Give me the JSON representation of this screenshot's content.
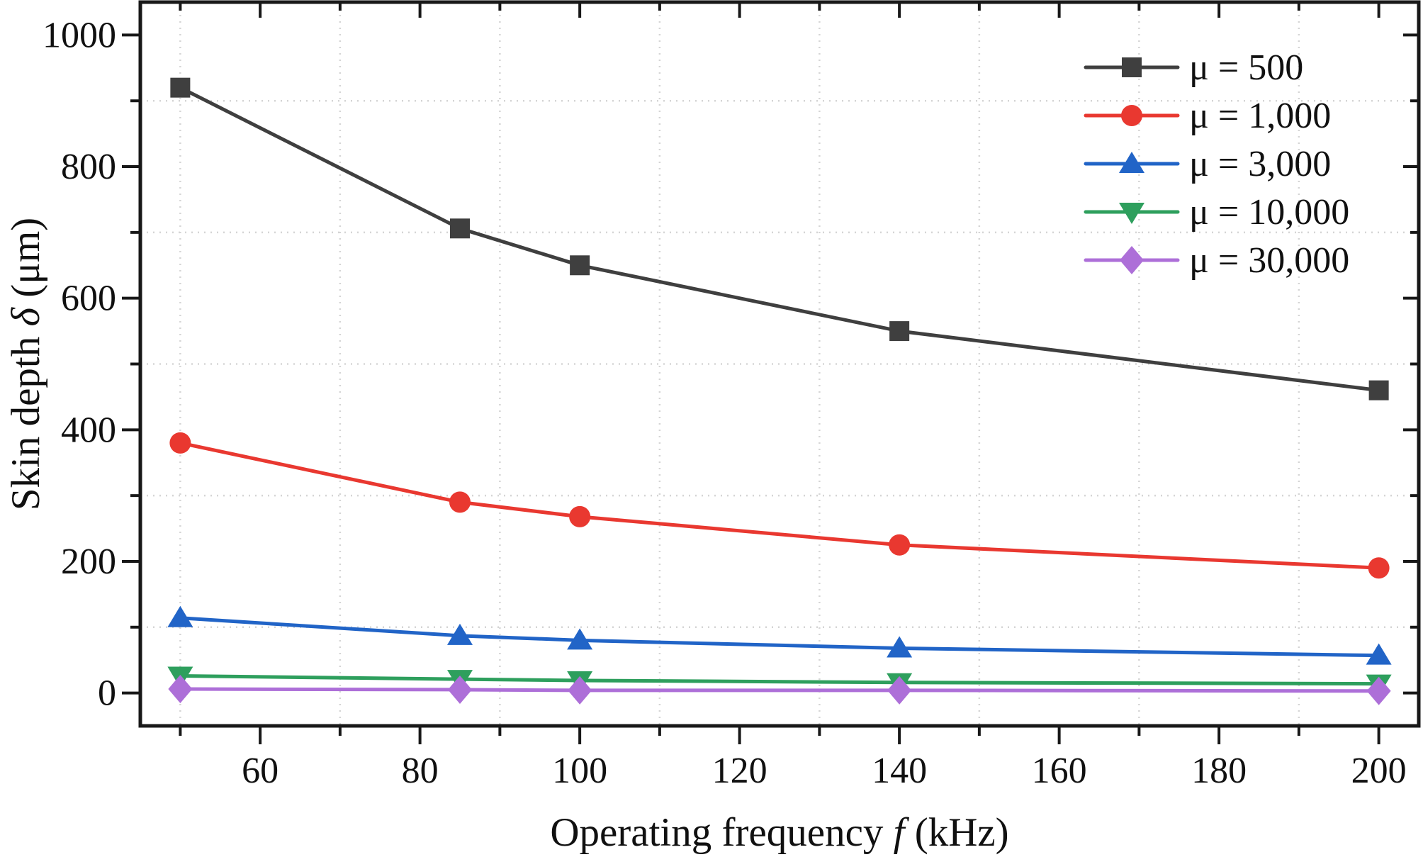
{
  "figure": {
    "x_axis_title": {
      "prefix": "Operating frequency ",
      "symbol": "f",
      "suffix": " (kHz)"
    },
    "y_axis_title": {
      "prefix": "Skin depth ",
      "symbol": "δ",
      "suffix": " (μm)"
    }
  },
  "chart_data": {
    "type": "line",
    "title": "",
    "xlabel": "Operating frequency f (kHz)",
    "ylabel": "Skin depth δ (μm)",
    "x": [
      50,
      85,
      100,
      140,
      200
    ],
    "series": [
      {
        "name": "μ = 500",
        "color": "#3f3f3f",
        "marker": "square",
        "values": [
          920,
          706,
          650,
          550,
          460
        ]
      },
      {
        "name": "μ = 1,000",
        "color": "#e93830",
        "marker": "circle",
        "values": [
          380,
          290,
          268,
          225,
          190
        ]
      },
      {
        "name": "μ = 3,000",
        "color": "#2164c7",
        "marker": "triangle-up",
        "values": [
          114,
          87,
          80,
          68,
          57
        ]
      },
      {
        "name": "μ = 10,000",
        "color": "#2e9f5d",
        "marker": "triangle-down",
        "values": [
          26,
          21,
          19,
          16,
          14
        ]
      },
      {
        "name": "μ = 30,000",
        "color": "#ad6fd8",
        "marker": "diamond",
        "values": [
          6,
          5,
          4,
          4,
          3
        ]
      }
    ],
    "xlim": [
      45,
      205
    ],
    "ylim": [
      -50,
      1050
    ],
    "x_major_ticks": {
      "values": [
        60,
        80,
        100,
        120,
        140,
        160,
        180,
        200
      ],
      "labels": [
        "60",
        "80",
        "100",
        "120",
        "140",
        "160",
        "180",
        "200"
      ]
    },
    "x_minor_ticks": [
      50,
      70,
      90,
      110,
      130,
      150,
      170,
      190
    ],
    "y_major_ticks": {
      "values": [
        0,
        200,
        400,
        600,
        800,
        1000
      ],
      "labels": [
        "0",
        "200",
        "400",
        "600",
        "800",
        "1000"
      ]
    },
    "y_minor_ticks": [
      100,
      300,
      500,
      700,
      900
    ],
    "grid": {
      "style": "dotted",
      "at": "minor-ticks",
      "color": "#d5d5d5"
    },
    "legend": {
      "position": "top-right",
      "entries": [
        "μ = 500",
        "μ = 1,000",
        "μ = 3,000",
        "μ = 10,000",
        "μ = 30,000"
      ]
    }
  }
}
